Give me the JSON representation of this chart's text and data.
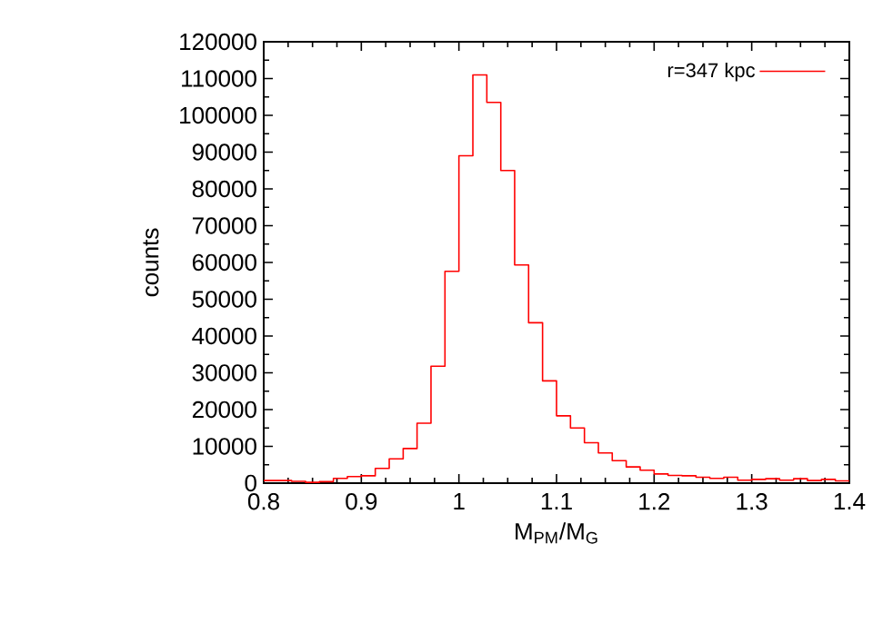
{
  "chart_data": {
    "type": "histogram",
    "xlabel": "M$_{PM}$/M$_{G}$",
    "ylabel": "counts",
    "bins": [
      0.8,
      0.8143,
      0.8286,
      0.8429,
      0.8571,
      0.8714,
      0.8857,
      0.9,
      0.9143,
      0.9286,
      0.9429,
      0.9571,
      0.9714,
      0.9857,
      1.0,
      1.0143,
      1.0286,
      1.0429,
      1.0571,
      1.0714,
      1.0857,
      1.1,
      1.1143,
      1.1286,
      1.1429,
      1.1571,
      1.1714,
      1.1857,
      1.2,
      1.2143,
      1.2286,
      1.2429,
      1.2571,
      1.2714,
      1.2857,
      1.3,
      1.3143,
      1.3286,
      1.3429,
      1.3571,
      1.3714,
      1.3857,
      1.4
    ],
    "series": [
      {
        "name": "r=347 kpc",
        "color": "#ff0000",
        "values": [
          700,
          700,
          500,
          200,
          400,
          1300,
          1800,
          2000,
          4000,
          6600,
          9400,
          16300,
          31800,
          57600,
          89000,
          111000,
          103500,
          85000,
          59300,
          43600,
          27800,
          18300,
          15000,
          11000,
          8200,
          6100,
          4400,
          3500,
          2500,
          2100,
          2000,
          1600,
          1300,
          1600,
          800,
          1000,
          1200,
          800,
          1200,
          700,
          1000,
          600
        ]
      }
    ],
    "xlim": [
      0.8,
      1.4
    ],
    "ylim": [
      0,
      120000
    ],
    "xticks": [
      0.8,
      0.9,
      1,
      1.1,
      1.2,
      1.3,
      1.4
    ],
    "yticks": [
      0,
      10000,
      20000,
      30000,
      40000,
      50000,
      60000,
      70000,
      80000,
      90000,
      100000,
      110000,
      120000
    ],
    "legend": "top right",
    "grid": false
  }
}
